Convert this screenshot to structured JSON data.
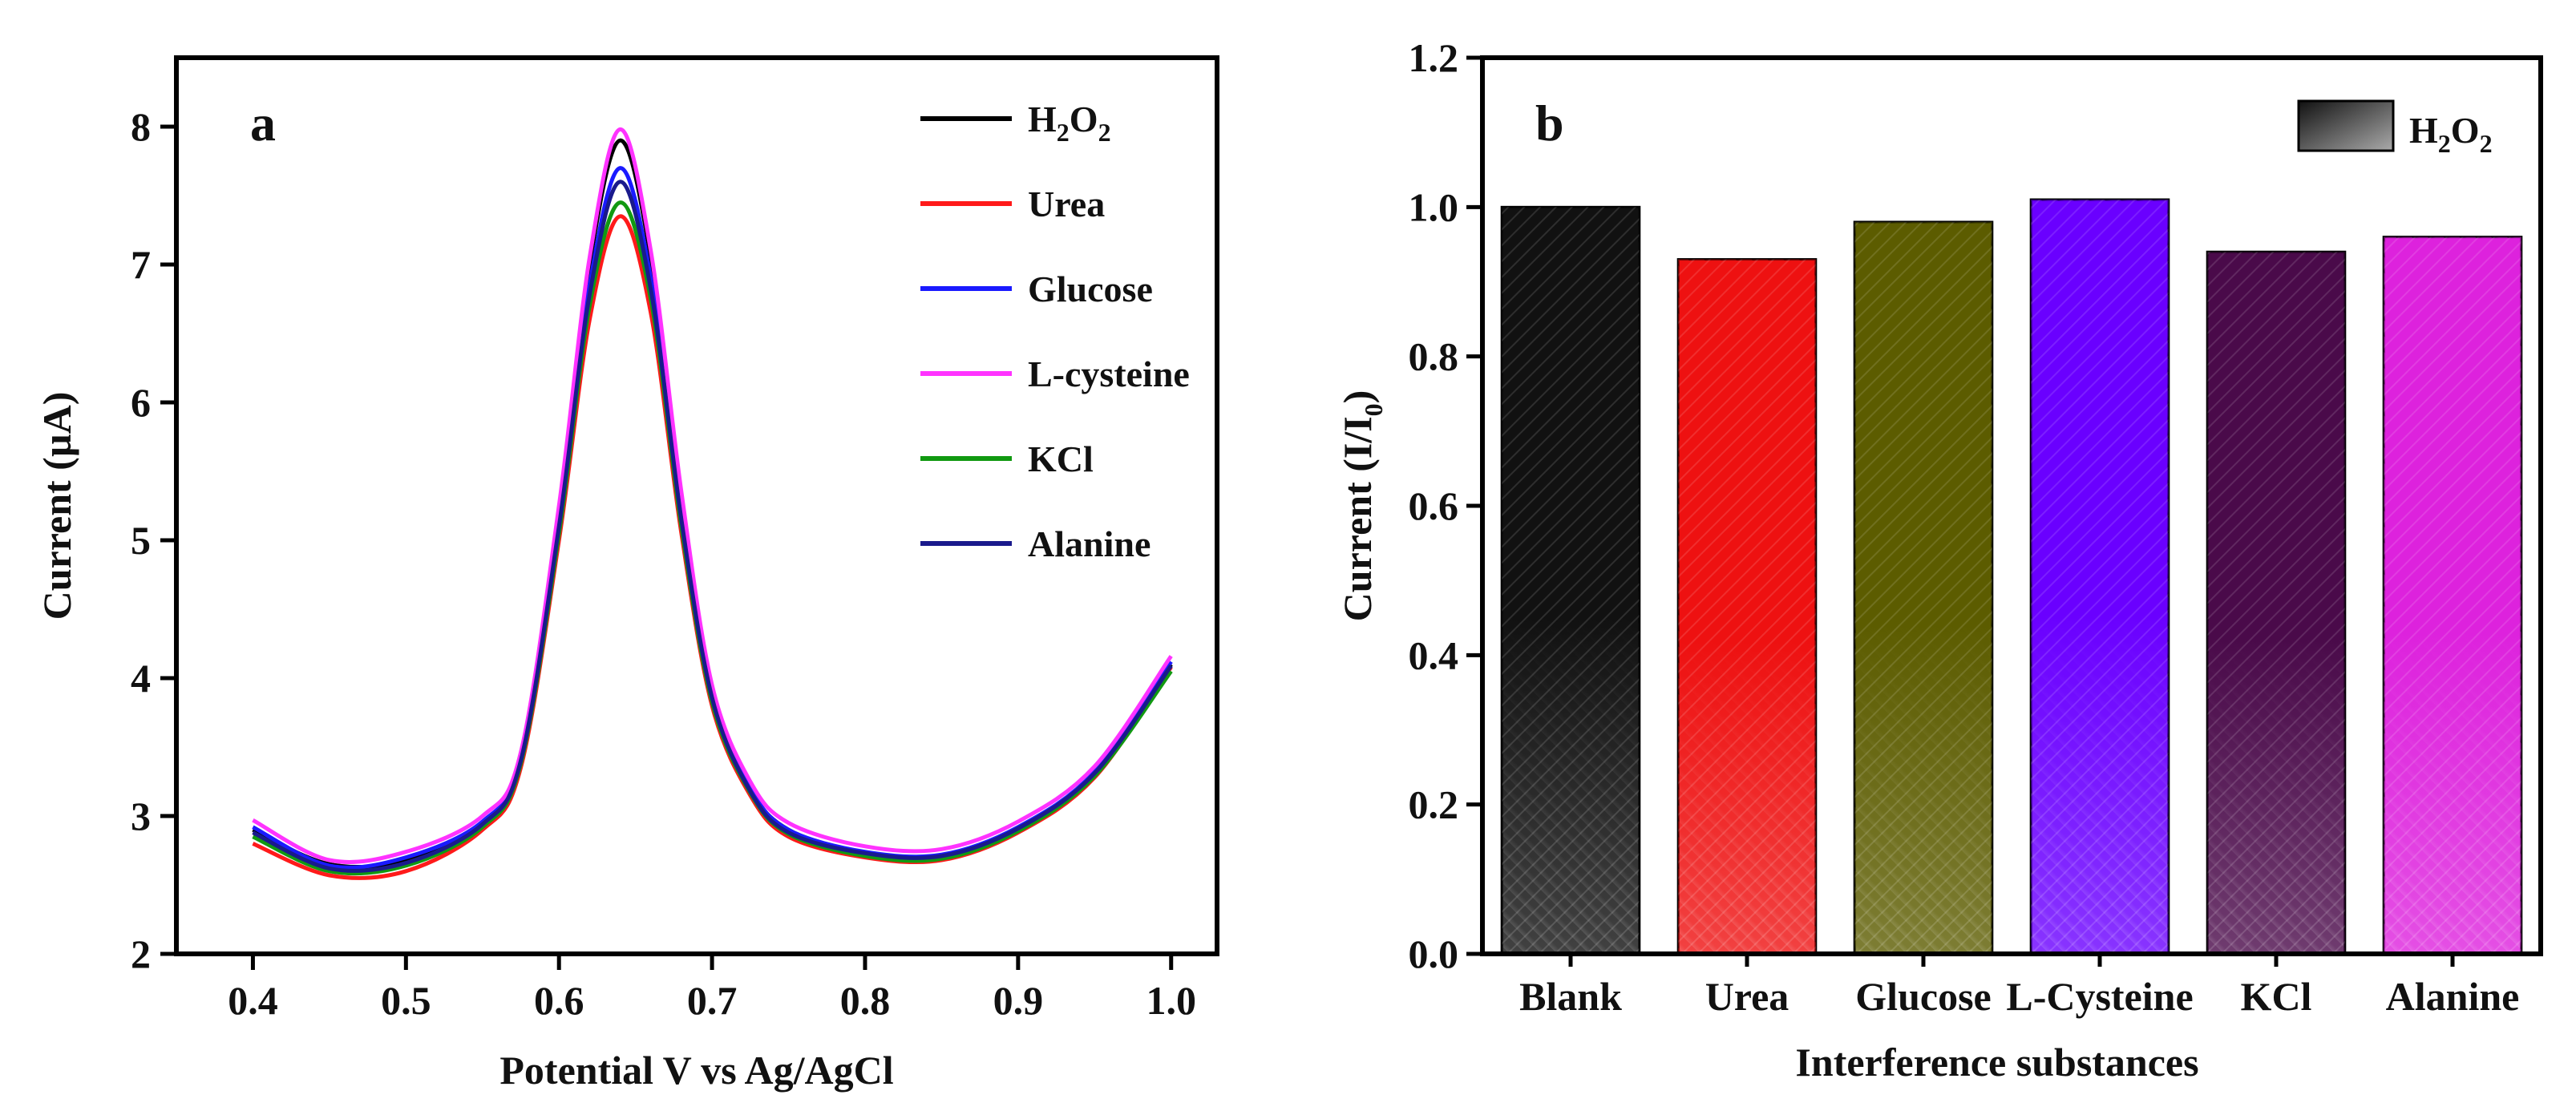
{
  "chart_data": [
    {
      "type": "line",
      "panel_label": "a",
      "title": "",
      "xlabel": "Potential V vs Ag/AgCl",
      "ylabel": "Current (µA)",
      "xlim": [
        0.35,
        1.03
      ],
      "ylim": [
        2,
        8.5
      ],
      "xticks": [
        "0.4",
        "0.5",
        "0.6",
        "0.7",
        "0.8",
        "0.9",
        "1.0"
      ],
      "yticks": [
        "2",
        "3",
        "4",
        "5",
        "6",
        "7",
        "8"
      ],
      "legend_position": "top-right",
      "grid": false,
      "x": [
        0.4,
        0.45,
        0.5,
        0.55,
        0.575,
        0.6,
        0.62,
        0.64,
        0.66,
        0.68,
        0.7,
        0.725,
        0.75,
        0.8,
        0.85,
        0.9,
        0.95,
        1.0
      ],
      "series": [
        {
          "name": "H2O2",
          "label_main": "H",
          "label_sub1": "2",
          "label_mid": "O",
          "label_sub2": "2",
          "color": "#000000",
          "values": [
            2.9,
            2.65,
            2.68,
            2.95,
            3.4,
            5.2,
            7.0,
            7.9,
            7.05,
            5.3,
            3.9,
            3.2,
            2.9,
            2.72,
            2.7,
            2.9,
            3.3,
            4.1
          ]
        },
        {
          "name": "Urea",
          "color": "#ff1a1a",
          "values": [
            2.8,
            2.57,
            2.6,
            2.9,
            3.35,
            5.0,
            6.6,
            7.35,
            6.65,
            5.05,
            3.8,
            3.15,
            2.85,
            2.7,
            2.68,
            2.88,
            3.28,
            4.08
          ]
        },
        {
          "name": "Glucose",
          "color": "#1a1aff",
          "values": [
            2.92,
            2.64,
            2.7,
            2.96,
            3.42,
            5.15,
            6.85,
            7.7,
            6.9,
            5.2,
            3.88,
            3.2,
            2.9,
            2.74,
            2.72,
            2.92,
            3.32,
            4.12
          ]
        },
        {
          "name": "L-cysteine",
          "color": "#ff33ff",
          "values": [
            2.97,
            2.68,
            2.74,
            3.0,
            3.46,
            5.25,
            7.05,
            7.98,
            7.1,
            5.35,
            3.95,
            3.25,
            2.95,
            2.78,
            2.76,
            2.96,
            3.36,
            4.16
          ]
        },
        {
          "name": "KCl",
          "color": "#119911",
          "values": [
            2.85,
            2.6,
            2.64,
            2.92,
            3.38,
            5.05,
            6.7,
            7.45,
            6.75,
            5.1,
            3.83,
            3.17,
            2.87,
            2.71,
            2.69,
            2.89,
            3.29,
            4.05
          ]
        },
        {
          "name": "Alanine",
          "color": "#1a1a8c",
          "values": [
            2.88,
            2.62,
            2.66,
            2.94,
            3.4,
            5.1,
            6.78,
            7.6,
            6.82,
            5.15,
            3.86,
            3.18,
            2.88,
            2.73,
            2.71,
            2.91,
            3.31,
            4.09
          ]
        }
      ]
    },
    {
      "type": "bar",
      "panel_label": "b",
      "title": "",
      "xlabel": "Interference substances",
      "ylabel_main": "Current (I/I",
      "ylabel_sub": "0",
      "ylabel_end": ")",
      "ylim": [
        0,
        1.2
      ],
      "yticks": [
        "0.0",
        "0.2",
        "0.4",
        "0.6",
        "0.8",
        "1.0",
        "1.2"
      ],
      "legend_position": "top-right",
      "legend": {
        "main": "H",
        "sub1": "2",
        "mid": "O",
        "sub2": "2"
      },
      "grid": false,
      "categories": [
        "Blank",
        "Urea",
        "Glucose",
        "L-Cysteine",
        "KCl",
        "Alanine"
      ],
      "values": [
        1.0,
        0.93,
        0.98,
        1.01,
        0.94,
        0.96
      ],
      "colors": [
        "#111111",
        "#ee1111",
        "#5c5c00",
        "#6a00ff",
        "#4a0a4a",
        "#dd22dd"
      ]
    }
  ]
}
